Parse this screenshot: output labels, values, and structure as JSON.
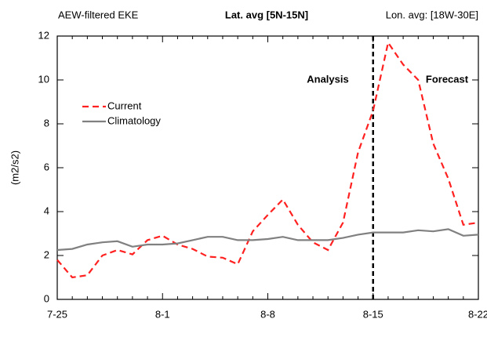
{
  "chart_data": {
    "type": "line",
    "title": "Lat. avg [5N-15N]",
    "title_left": "AEW-filtered EKE",
    "title_right": "Lon. avg: [18W-30E]",
    "y_label": "(m2/s2)",
    "annotations": [
      "Analysis",
      "Forecast"
    ],
    "vline": 21,
    "categories": [
      "7-25",
      null,
      null,
      null,
      null,
      null,
      null,
      "8-1",
      null,
      null,
      null,
      null,
      null,
      null,
      "8-8",
      null,
      null,
      null,
      null,
      null,
      null,
      "8-15",
      null,
      null,
      null,
      null,
      null,
      null,
      "8-22"
    ],
    "series": [
      {
        "name": "Current",
        "color": "#ff2020",
        "dash": true,
        "values": [
          1.8,
          1.0,
          1.1,
          2.0,
          2.25,
          2.05,
          2.7,
          2.9,
          2.5,
          2.3,
          1.95,
          1.9,
          1.6,
          3.1,
          3.85,
          4.55,
          3.4,
          2.6,
          2.25,
          3.5,
          6.7,
          8.6,
          11.7,
          10.7,
          10.0,
          7.1,
          5.5,
          3.4,
          3.5
        ]
      },
      {
        "name": "Climatology",
        "color": "#808080",
        "dash": false,
        "values": [
          2.25,
          2.3,
          2.5,
          2.6,
          2.65,
          2.4,
          2.5,
          2.5,
          2.55,
          2.7,
          2.85,
          2.85,
          2.7,
          2.7,
          2.75,
          2.85,
          2.7,
          2.7,
          2.7,
          2.8,
          2.95,
          3.05,
          3.05,
          3.05,
          3.15,
          3.1,
          3.2,
          2.9,
          2.95
        ]
      }
    ],
    "ylim": [
      0,
      12
    ],
    "yticks": [
      0,
      2,
      4,
      6,
      8,
      10,
      12
    ]
  }
}
